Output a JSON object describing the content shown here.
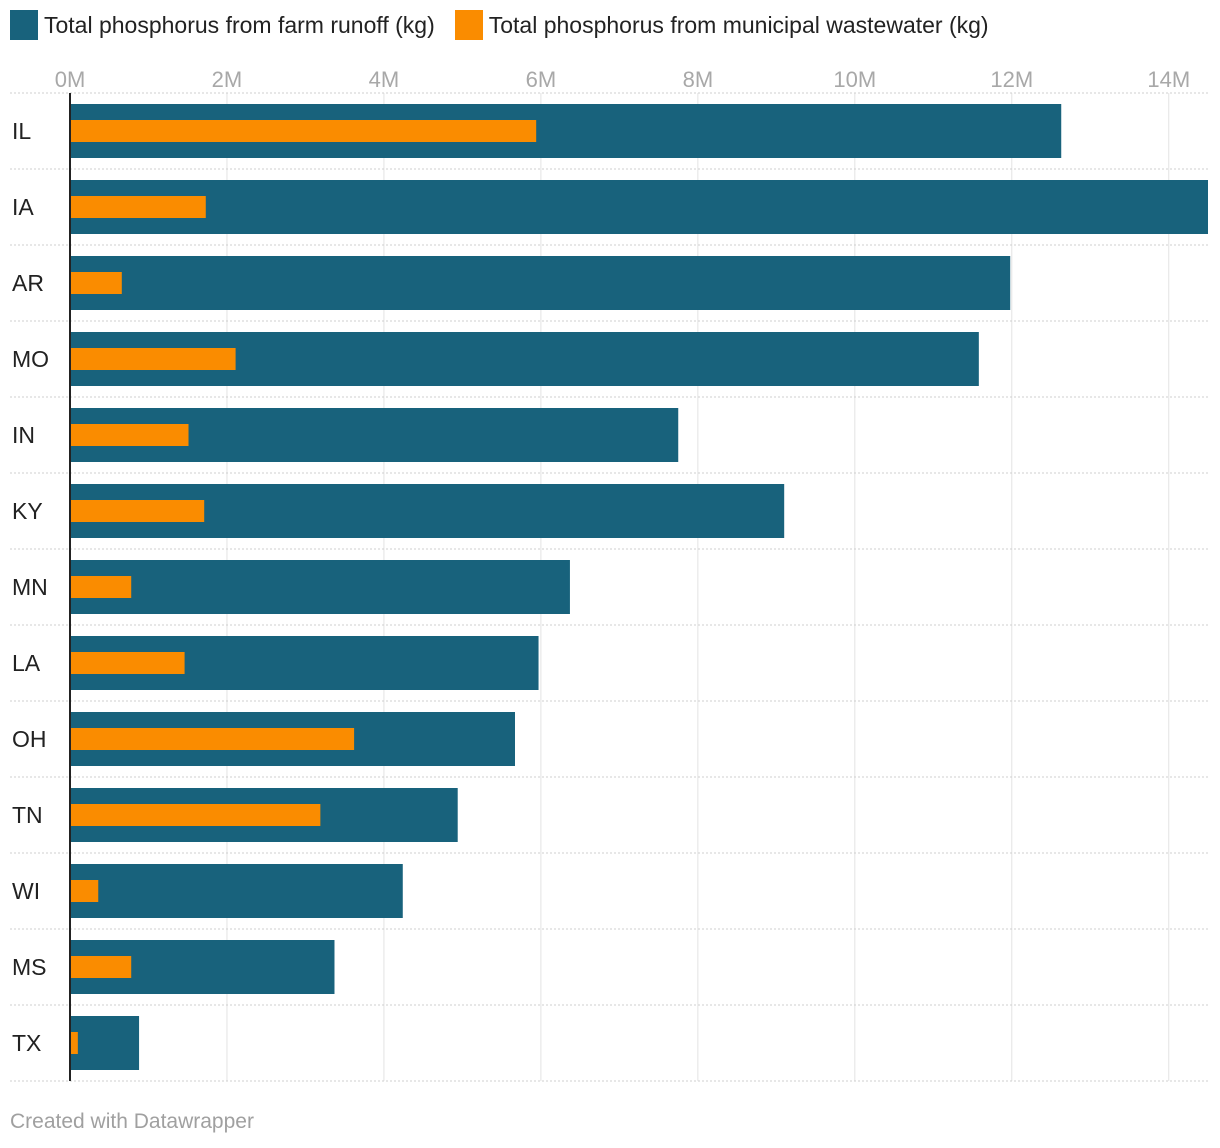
{
  "chart_data": {
    "type": "bar",
    "orientation": "horizontal",
    "title": "",
    "xlabel": "",
    "ylabel": "",
    "xlim": [
      0,
      14.5
    ],
    "ticks": [
      0,
      2,
      4,
      6,
      8,
      10,
      12,
      14
    ],
    "tick_labels": [
      "0M",
      "2M",
      "4M",
      "6M",
      "8M",
      "10M",
      "12M",
      "14M"
    ],
    "categories": [
      "IL",
      "IA",
      "AR",
      "MO",
      "IN",
      "KY",
      "MN",
      "LA",
      "OH",
      "TN",
      "WI",
      "MS",
      "TX"
    ],
    "series": [
      {
        "name": "Total phosphorus from farm runoff (kg)",
        "color": "#18627c",
        "values": [
          12.63,
          14.5,
          11.98,
          11.58,
          7.75,
          9.1,
          6.37,
          5.97,
          5.67,
          4.94,
          4.24,
          3.37,
          0.88
        ]
      },
      {
        "name": "Total phosphorus from municipal wastewater (kg)",
        "color": "#fa8c00",
        "values": [
          5.94,
          1.73,
          0.66,
          2.11,
          1.51,
          1.71,
          0.78,
          1.46,
          3.62,
          3.19,
          0.36,
          0.78,
          0.1
        ]
      }
    ],
    "legend": "top-left",
    "grid": true
  },
  "footer": {
    "credit": "Created with Datawrapper"
  }
}
